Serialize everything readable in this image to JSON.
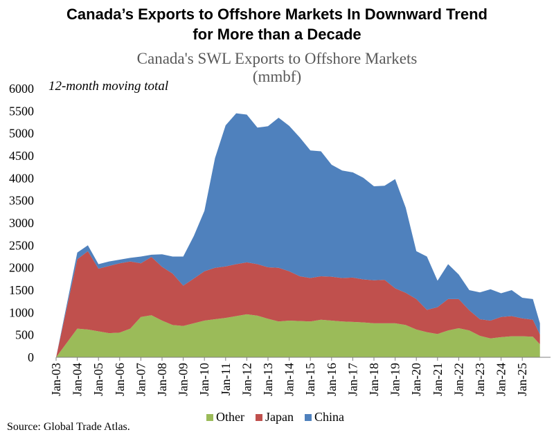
{
  "headline": {
    "line1": "Canada’s Exports to Offshore Markets In Downward Trend",
    "line2": "for More than a Decade"
  },
  "source": "Source:  Global Trade Atlas.",
  "chart_data": {
    "type": "area",
    "stacked": true,
    "title": "Canada's SWL Exports to Offshore Markets",
    "subtitle": "(mmbf)",
    "annotation": "12-month moving total",
    "xlabel": "",
    "ylabel": "",
    "ylim": [
      0,
      6000
    ],
    "yticks": [
      0,
      500,
      1000,
      1500,
      2000,
      2500,
      3000,
      3500,
      4000,
      4500,
      5000,
      5500,
      6000
    ],
    "xticks": [
      "Jan-03",
      "Jan-04",
      "Jan-05",
      "Jan-06",
      "Jan-07",
      "Jan-08",
      "Jan-09",
      "Jan-10",
      "Jan-11",
      "Jan-12",
      "Jan-13",
      "Jan-14",
      "Jan-15",
      "Jan-16",
      "Jan-17",
      "Jan-18",
      "Jan-19",
      "Jan-20",
      "Jan-21",
      "Jan-22",
      "Jan-23",
      "Jan-24",
      "Jan-25"
    ],
    "grid": false,
    "legend_position": "bottom",
    "x": [
      "Jan-03",
      "Jan-04",
      "Jul-04",
      "Jan-05",
      "Jul-05",
      "Jan-06",
      "Jul-06",
      "Jan-07",
      "Jul-07",
      "Jan-08",
      "Jul-08",
      "Jan-09",
      "Jul-09",
      "Jan-10",
      "Jul-10",
      "Jan-11",
      "Jul-11",
      "Jan-12",
      "Jul-12",
      "Jan-13",
      "Jul-13",
      "Jan-14",
      "Jul-14",
      "Jan-15",
      "Jul-15",
      "Jan-16",
      "Jul-16",
      "Jan-17",
      "Jul-17",
      "Jan-18",
      "Jul-18",
      "Jan-19",
      "Jul-19",
      "Jan-20",
      "Jul-20",
      "Jan-21",
      "Jul-21",
      "Jan-22",
      "Jul-22",
      "Jan-23",
      "Jul-23",
      "Jan-24",
      "Jul-24",
      "Jan-25",
      "Jul-25",
      "Nov-25"
    ],
    "series": [
      {
        "name": "Other",
        "color": "#9bbb59",
        "values": [
          0,
          640,
          620,
          580,
          540,
          550,
          640,
          900,
          940,
          820,
          720,
          700,
          760,
          820,
          850,
          880,
          920,
          960,
          930,
          860,
          800,
          820,
          810,
          800,
          840,
          820,
          800,
          790,
          780,
          760,
          760,
          760,
          720,
          620,
          560,
          520,
          600,
          650,
          600,
          480,
          420,
          450,
          470,
          470,
          460,
          290
        ]
      },
      {
        "name": "Japan",
        "color": "#c0504d",
        "values": [
          0,
          1550,
          1750,
          1400,
          1500,
          1550,
          1500,
          1200,
          1300,
          1200,
          1150,
          900,
          1000,
          1100,
          1150,
          1150,
          1160,
          1160,
          1150,
          1150,
          1200,
          1100,
          1000,
          970,
          970,
          980,
          970,
          990,
          960,
          960,
          970,
          780,
          720,
          680,
          500,
          600,
          700,
          650,
          450,
          370,
          400,
          450,
          450,
          400,
          380,
          220
        ]
      },
      {
        "name": "China",
        "color": "#4f81bd",
        "values": [
          0,
          150,
          130,
          100,
          100,
          80,
          80,
          150,
          50,
          280,
          380,
          650,
          950,
          1350,
          2450,
          3150,
          3370,
          3300,
          3050,
          3150,
          3350,
          3250,
          3100,
          2850,
          2790,
          2500,
          2400,
          2350,
          2270,
          2100,
          2100,
          2440,
          1900,
          1070,
          1190,
          590,
          780,
          550,
          450,
          600,
          700,
          530,
          580,
          460,
          460,
          250
        ]
      }
    ]
  }
}
